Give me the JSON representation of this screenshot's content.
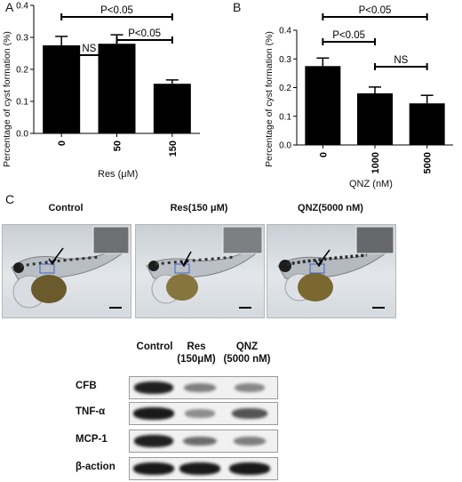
{
  "figure": {
    "panel_a": {
      "letter": "A",
      "ylabel": "Percentage of cyst formation (%)",
      "xlabel": "Res (μM)",
      "y_ticks": [
        "0.0",
        "0.1",
        "0.2",
        "0.3",
        "0.4"
      ],
      "annotations": [
        "P<0.05",
        "NS",
        "P<0.05"
      ]
    },
    "panel_b": {
      "letter": "B",
      "ylabel": "Percentage of cyst formation (%)",
      "xlabel": "QNZ (nM)",
      "y_ticks": [
        "0.0",
        "0.1",
        "0.2",
        "0.3",
        "0.4"
      ],
      "annotations": [
        "P<0.05",
        "P<0.05",
        "NS"
      ]
    },
    "panel_c": {
      "letter": "C",
      "conditions": [
        "Control",
        "Res(150 μM)",
        "QNZ(5000 nM)"
      ]
    },
    "western_blot": {
      "lane_labels": [
        [
          "Control"
        ],
        [
          "Res",
          "(150μM)"
        ],
        [
          "QNZ",
          "(5000 nM)"
        ]
      ],
      "rows": [
        {
          "label": "CFB",
          "intensity": [
            0.9,
            0.35,
            0.3
          ]
        },
        {
          "label": "TNF-α",
          "intensity": [
            0.95,
            0.25,
            0.6
          ]
        },
        {
          "label": "MCP-1",
          "intensity": [
            0.9,
            0.45,
            0.35
          ]
        },
        {
          "label": "β-action",
          "intensity": [
            0.95,
            0.95,
            0.95
          ]
        }
      ]
    }
  },
  "chart_data": [
    {
      "type": "bar",
      "panel": "A",
      "categories": [
        "0",
        "50",
        "150"
      ],
      "values": [
        0.275,
        0.28,
        0.155
      ],
      "errors": [
        0.028,
        0.028,
        0.012
      ],
      "xlabel": "Res (μM)",
      "ylabel": "Percentage of cyst formation (%)",
      "ylim": [
        0,
        0.4
      ],
      "grid": false,
      "comparisons": [
        {
          "from": 0,
          "to": 2,
          "label": "P<0.05"
        },
        {
          "from": 0,
          "to": 1,
          "label": "NS"
        },
        {
          "from": 1,
          "to": 2,
          "label": "P<0.05"
        }
      ]
    },
    {
      "type": "bar",
      "panel": "B",
      "categories": [
        "0",
        "1000",
        "5000"
      ],
      "values": [
        0.275,
        0.18,
        0.145
      ],
      "errors": [
        0.028,
        0.022,
        0.028
      ],
      "xlabel": "QNZ (nM)",
      "ylabel": "Percentage of cyst formation (%)",
      "ylim": [
        0,
        0.4
      ],
      "grid": false,
      "comparisons": [
        {
          "from": 0,
          "to": 2,
          "label": "P<0.05"
        },
        {
          "from": 0,
          "to": 1,
          "label": "P<0.05"
        },
        {
          "from": 1,
          "to": 2,
          "label": "NS"
        }
      ]
    }
  ]
}
